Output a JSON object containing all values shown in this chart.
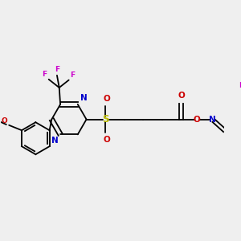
{
  "bg_color": "#efefef",
  "lw": 1.3,
  "N_color": "#0000cc",
  "O_color": "#cc0000",
  "S_color": "#bbbb00",
  "F_color": "#cc00cc",
  "fs": 6.5,
  "fs_s": 7.5,
  "figsize": [
    3.0,
    3.0
  ],
  "dpi": 100,
  "xlim": [
    0,
    10
  ],
  "ylim": [
    0,
    10
  ]
}
